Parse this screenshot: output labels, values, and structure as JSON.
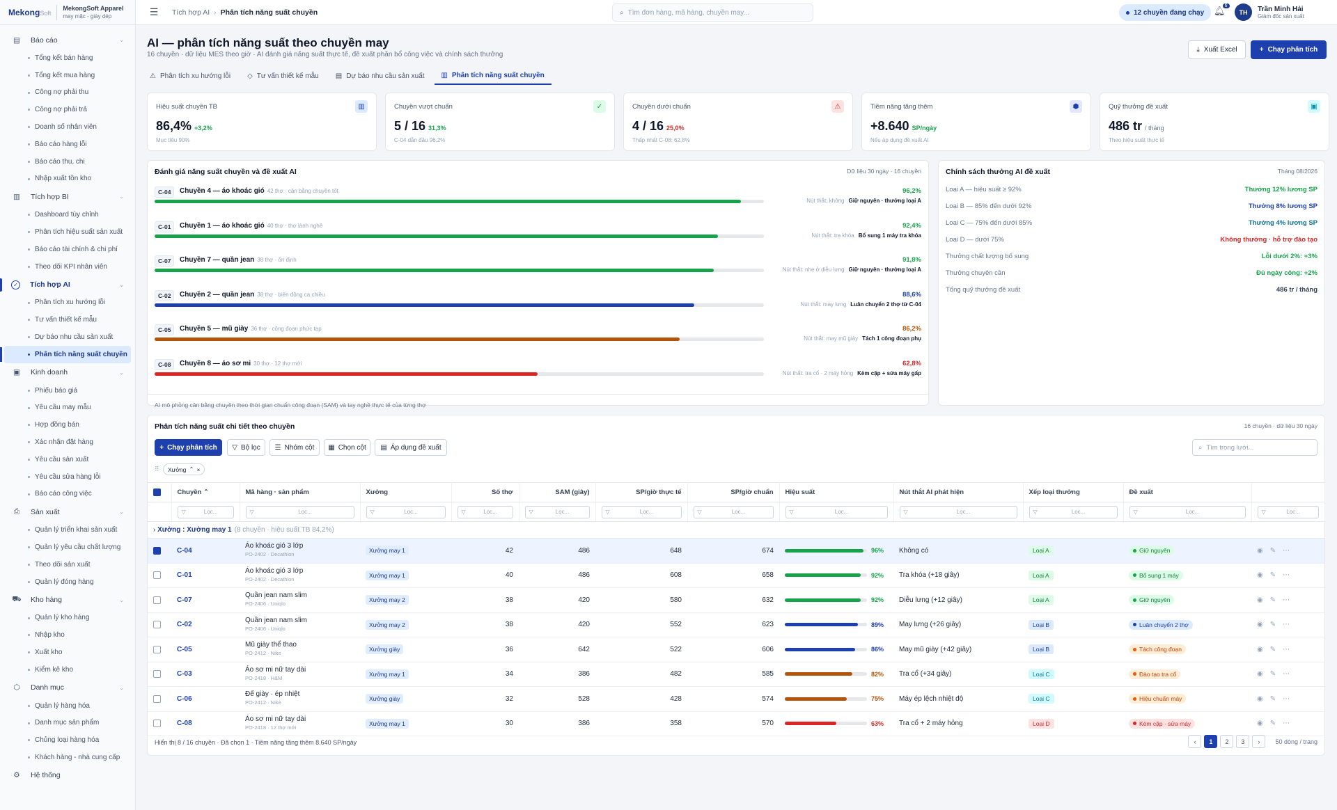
{
  "brand": {
    "logo": "Mekong",
    "logo_suffix": "Soft",
    "company": "MekongSoft Apparel",
    "tagline": "may mặc - giày dép"
  },
  "sidebar": [
    {
      "label": "Báo cáo",
      "icon": "report-icon",
      "items": [
        "Tổng kết bán hàng",
        "Tổng kết mua hàng",
        "Công nợ phải thu",
        "Công nợ phải trả",
        "Doanh số nhân viên",
        "Báo cáo hàng lỗi",
        "Báo cáo thu, chi",
        "Nhập xuất tồn kho"
      ]
    },
    {
      "label": "Tích hợp BI",
      "icon": "bar-chart-icon",
      "items": [
        "Dashboard tùy chỉnh",
        "Phân tích hiệu suất sản xuất",
        "Báo cáo tài chính & chi phí",
        "Theo dõi KPI nhân viên"
      ]
    },
    {
      "label": "Tích hợp AI",
      "icon": "ai-check-icon",
      "active": true,
      "items": [
        "Phân tích xu hướng lỗi",
        "Tư vấn thiết kế mẫu",
        "Dự báo nhu cầu sản xuất",
        "Phân tích năng suất chuyền"
      ],
      "active_item": 3
    },
    {
      "label": "Kinh doanh",
      "icon": "money-icon",
      "items": [
        "Phiếu báo giá",
        "Yêu cầu may mẫu",
        "Hợp đồng bán",
        "Xác nhận đặt hàng",
        "Yêu cầu sản xuất",
        "Yêu cầu sửa hàng lỗi",
        "Báo cáo công việc"
      ]
    },
    {
      "label": "Sản xuất",
      "icon": "printer-icon",
      "items": [
        "Quản lý triển khai sản xuất",
        "Quản lý yêu cầu chất lượng",
        "Theo dõi sản xuất",
        "Quản lý đóng hàng"
      ]
    },
    {
      "label": "Kho hàng",
      "icon": "truck-icon",
      "items": [
        "Quản lý kho hàng",
        "Nhập kho",
        "Xuất kho",
        "Kiểm kê kho"
      ]
    },
    {
      "label": "Danh mục",
      "icon": "box-icon",
      "items": [
        "Quản lý hàng hóa",
        "Danh mục sản phẩm",
        "Chủng loại hàng hóa",
        "Khách hàng - nhà cung cấp"
      ]
    }
  ],
  "sidebar_footer": "Hệ thống",
  "topbar": {
    "crumb_parent": "Tích hợp AI",
    "crumb_current": "Phân tích năng suất chuyền",
    "search_placeholder": "Tìm đơn hàng, mã hàng, chuyền may...",
    "live_badge": "12 chuyền đang chạy",
    "notif_count": "6",
    "user_initials": "TH",
    "user_name": "Trần Minh Hải",
    "user_role": "Giám đốc sản xuất"
  },
  "page": {
    "title": "AI — phân tích năng suất theo chuyền may",
    "subtitle": "16 chuyền · dữ liệu MES theo giờ · AI đánh giá năng suất thực tế, đề xuất phân bổ công việc và chính sách thưởng",
    "export_label": "Xuất Excel",
    "run_label": "Chạy phân tích",
    "tabs": [
      "Phân tích xu hướng lỗi",
      "Tư vấn thiết kế mẫu",
      "Dự báo nhu cầu sản xuất",
      "Phân tích năng suất chuyền"
    ],
    "active_tab": 3
  },
  "kpis": [
    {
      "label": "Hiệu suất chuyền TB",
      "value": "86,4%",
      "unit": "",
      "delta": "+3,2%",
      "note": "Mục tiêu 90%",
      "icon": "bar-chart-icon",
      "color": "#1e40af",
      "bg": "#dbeafe"
    },
    {
      "label": "Chuyền vượt chuẩn",
      "value": "5 / 16",
      "unit": "",
      "delta": "31,3%",
      "note": "C-04 dẫn đầu 96,2%",
      "icon": "check-circle-icon",
      "color": "#16a34a",
      "bg": "#dcfce7"
    },
    {
      "label": "Chuyền dưới chuẩn",
      "value": "4 / 16",
      "unit": "",
      "delta": "25,0%",
      "note": "Thấp nhất C-08: 62,8%",
      "icon": "warning-icon",
      "color": "#dc2626",
      "bg": "#fee2e2"
    },
    {
      "label": "Tiềm năng tăng thêm",
      "value": "+8.640",
      "unit": "SP/ngày",
      "delta": "",
      "note": "Nếu áp dụng đề xuất AI",
      "icon": "cube-icon",
      "color": "#1e40af",
      "bg": "#e0e7ff"
    },
    {
      "label": "Quỹ thưởng đề xuất",
      "value": "486 tr",
      "unit": "/ tháng",
      "delta": "",
      "note": "Theo hiệu suất thực tế",
      "icon": "money-icon",
      "color": "#0891b2",
      "bg": "#cffafe"
    }
  ],
  "assessment": {
    "title": "Đánh giá năng suất chuyền và đề xuất AI",
    "meta": "Dữ liệu 30 ngày · 16 chuyền",
    "footnote": "AI mô phỏng cân bằng chuyền theo thời gian chuẩn công đoạn (SAM) và tay nghề thực tế của từng thợ",
    "rows": [
      {
        "code": "C-04",
        "name": "Chuyền 4 — áo khoác gió",
        "sub": "42 thợ · cân bằng chuyền tốt",
        "pct": "96,2%",
        "value": 96.2,
        "color": "#16a34a",
        "bottleneck": "Nút thắt: không",
        "action": "Giữ nguyên · thưởng loại A"
      },
      {
        "code": "C-01",
        "name": "Chuyền 1 — áo khoác gió",
        "sub": "40 thợ · thợ lành nghề",
        "pct": "92,4%",
        "value": 92.4,
        "color": "#16a34a",
        "bottleneck": "Nút thắt: tra khóa",
        "action": "Bổ sung 1 máy tra khóa"
      },
      {
        "code": "C-07",
        "name": "Chuyền 7 — quần jean",
        "sub": "38 thợ · ổn định",
        "pct": "91,8%",
        "value": 91.8,
        "color": "#16a34a",
        "bottleneck": "Nút thắt: nhẹ ở diễu lưng",
        "action": "Giữ nguyên · thưởng loại A"
      },
      {
        "code": "C-02",
        "name": "Chuyền 2 — quần jean",
        "sub": "38 thợ · biến động ca chiều",
        "pct": "88,6%",
        "value": 88.6,
        "color": "#1e40af",
        "bottleneck": "Nút thắt: may lưng",
        "action": "Luân chuyển 2 thợ từ C-04"
      },
      {
        "code": "C-05",
        "name": "Chuyền 5 — mũ giày",
        "sub": "36 thợ · công đoạn phức tạp",
        "pct": "86,2%",
        "value": 86.2,
        "color": "#b45309",
        "bottleneck": "Nút thắt: may mũ giày",
        "action": "Tách 1 công đoạn phụ"
      },
      {
        "code": "C-08",
        "name": "Chuyền 8 — áo sơ mi",
        "sub": "30 thợ · 12 thợ mới",
        "pct": "62,8%",
        "value": 62.8,
        "color": "#dc2626",
        "bottleneck": "Nút thắt: tra cổ · 2 máy hỏng",
        "action": "Kèm cặp + sửa máy gấp"
      }
    ]
  },
  "policy": {
    "title": "Chính sách thưởng AI đề xuất",
    "period": "Tháng 08/2026",
    "rows": [
      {
        "label": "Loại A — hiệu suất ≥ 92%",
        "value": "Thưởng 12% lương SP",
        "color": "#16a34a"
      },
      {
        "label": "Loại B — 85% đến dưới 92%",
        "value": "Thưởng 8% lương SP",
        "color": "#1e40af"
      },
      {
        "label": "Loại C — 75% đến dưới 85%",
        "value": "Thưởng 4% lương SP",
        "color": "#0e7490"
      },
      {
        "label": "Loại D — dưới 75%",
        "value": "Không thưởng · hỗ trợ đào tạo",
        "color": "#dc2626"
      },
      {
        "label": "Thưởng chất lượng bổ sung",
        "value": "Lỗi dưới 2%: +3%",
        "color": "#16a34a"
      },
      {
        "label": "Thưởng chuyên cần",
        "value": "Đủ ngày công: +2%",
        "color": "#16a34a"
      },
      {
        "label": "Tổng quỹ thưởng đề xuất",
        "value": "486 tr / tháng",
        "color": "#334155"
      }
    ]
  },
  "grid": {
    "title": "Phân tích năng suất chi tiết theo chuyền",
    "meta": "16 chuyền · dữ liệu 30 ngày",
    "toolbar": [
      "Chạy phân tích",
      "Bộ lọc",
      "Nhóm cột",
      "Chọn cột",
      "Áp dụng đề xuất"
    ],
    "search_placeholder": "Tìm trong lưới...",
    "group_chip": "Xưởng",
    "filter_placeholder": "Lọc...",
    "columns": [
      "Chuyền",
      "Mã hàng · sản phẩm",
      "Xưởng",
      "Số thợ",
      "SAM (giây)",
      "SP/giờ thực tế",
      "SP/giờ chuẩn",
      "Hiệu suất",
      "Nút thắt AI phát hiện",
      "Xếp loại thưởng",
      "Đề xuất"
    ],
    "group_label": "Xưởng",
    "group_value": "Xưởng may 1",
    "group_summary": "(8 chuyền · hiệu suất TB 84,2%)",
    "rows": [
      {
        "line": "C-04",
        "product": "Áo khoác gió 3 lớp",
        "po": "PO-2402 · Decathlon",
        "workshop": "Xưởng may 1",
        "workers": "42",
        "sam": "486",
        "actual": "648",
        "std": "674",
        "eff": 96,
        "eff_label": "96%",
        "eff_color": "#16a34a",
        "bottleneck": "Không có",
        "rank": "Loại A",
        "rank_bg": "#dcfce7",
        "rank_fg": "#15803d",
        "proposal": "Giữ nguyên",
        "prop_bg": "#dcfce7",
        "prop_fg": "#15803d",
        "prop_dot": "#16a34a",
        "selected": true
      },
      {
        "line": "C-01",
        "product": "Áo khoác gió 3 lớp",
        "po": "PO-2402 · Decathlon",
        "workshop": "Xưởng may 1",
        "workers": "40",
        "sam": "486",
        "actual": "608",
        "std": "658",
        "eff": 92,
        "eff_label": "92%",
        "eff_color": "#16a34a",
        "bottleneck": "Tra khóa (+18 giây)",
        "rank": "Loại A",
        "rank_bg": "#dcfce7",
        "rank_fg": "#15803d",
        "proposal": "Bổ sung 1 máy",
        "prop_bg": "#dcfce7",
        "prop_fg": "#15803d",
        "prop_dot": "#16a34a",
        "selected": false
      },
      {
        "line": "C-07",
        "product": "Quần jean nam slim",
        "po": "PO-2406 · Uniqlo",
        "workshop": "Xưởng may 2",
        "workers": "38",
        "sam": "420",
        "actual": "580",
        "std": "632",
        "eff": 92,
        "eff_label": "92%",
        "eff_color": "#16a34a",
        "bottleneck": "Diễu lưng (+12 giây)",
        "rank": "Loại A",
        "rank_bg": "#dcfce7",
        "rank_fg": "#15803d",
        "proposal": "Giữ nguyên",
        "prop_bg": "#dcfce7",
        "prop_fg": "#15803d",
        "prop_dot": "#16a34a",
        "selected": false
      },
      {
        "line": "C-02",
        "product": "Quần jean nam slim",
        "po": "PO-2406 · Uniqlo",
        "workshop": "Xưởng may 2",
        "workers": "38",
        "sam": "420",
        "actual": "552",
        "std": "623",
        "eff": 89,
        "eff_label": "89%",
        "eff_color": "#1e40af",
        "bottleneck": "May lưng (+26 giây)",
        "rank": "Loại B",
        "rank_bg": "#dbeafe",
        "rank_fg": "#1e40af",
        "proposal": "Luân chuyển 2 thợ",
        "prop_bg": "#dbeafe",
        "prop_fg": "#1e40af",
        "prop_dot": "#1e40af",
        "selected": false
      },
      {
        "line": "C-05",
        "product": "Mũ giày thể thao",
        "po": "PO-2412 · Nike",
        "workshop": "Xưởng giày",
        "workers": "36",
        "sam": "642",
        "actual": "522",
        "std": "606",
        "eff": 86,
        "eff_label": "86%",
        "eff_color": "#1e40af",
        "bottleneck": "May mũ giày (+42 giây)",
        "rank": "Loại B",
        "rank_bg": "#dbeafe",
        "rank_fg": "#1e40af",
        "proposal": "Tách công đoạn",
        "prop_bg": "#ffedd5",
        "prop_fg": "#c2410c",
        "prop_dot": "#ea580c",
        "selected": false
      },
      {
        "line": "C-03",
        "product": "Áo sơ mi nữ tay dài",
        "po": "PO-2418 · H&M",
        "workshop": "Xưởng may 1",
        "workers": "34",
        "sam": "386",
        "actual": "482",
        "std": "585",
        "eff": 82,
        "eff_label": "82%",
        "eff_color": "#b45309",
        "bottleneck": "Tra cổ (+34 giây)",
        "rank": "Loại C",
        "rank_bg": "#cffafe",
        "rank_fg": "#0e7490",
        "proposal": "Đào tạo tra cổ",
        "prop_bg": "#ffedd5",
        "prop_fg": "#c2410c",
        "prop_dot": "#ea580c",
        "selected": false
      },
      {
        "line": "C-06",
        "product": "Đế giày · ép nhiệt",
        "po": "PO-2412 · Nike",
        "workshop": "Xưởng giày",
        "workers": "32",
        "sam": "528",
        "actual": "428",
        "std": "574",
        "eff": 75,
        "eff_label": "75%",
        "eff_color": "#b45309",
        "bottleneck": "Máy ép lệch nhiệt độ",
        "rank": "Loại C",
        "rank_bg": "#cffafe",
        "rank_fg": "#0e7490",
        "proposal": "Hiệu chuẩn máy",
        "prop_bg": "#ffedd5",
        "prop_fg": "#c2410c",
        "prop_dot": "#ea580c",
        "selected": false
      },
      {
        "line": "C-08",
        "product": "Áo sơ mi nữ tay dài",
        "po": "PO-2418 · 12 thợ mới",
        "workshop": "Xưởng may 1",
        "workers": "30",
        "sam": "386",
        "actual": "358",
        "std": "570",
        "eff": 63,
        "eff_label": "63%",
        "eff_color": "#dc2626",
        "bottleneck": "Tra cổ + 2 máy hỏng",
        "rank": "Loại D",
        "rank_bg": "#fee2e2",
        "rank_fg": "#dc2626",
        "proposal": "Kèm cặp · sửa máy",
        "prop_bg": "#fee2e2",
        "prop_fg": "#dc2626",
        "prop_dot": "#dc2626",
        "selected": false
      }
    ],
    "footer": "Hiển thị 8 / 16 chuyền · Đã chọn 1 · Tiềm năng tăng thêm 8.640 SP/ngày",
    "pages": [
      "1",
      "2",
      "3"
    ],
    "page_size": "50 dòng / trang"
  }
}
